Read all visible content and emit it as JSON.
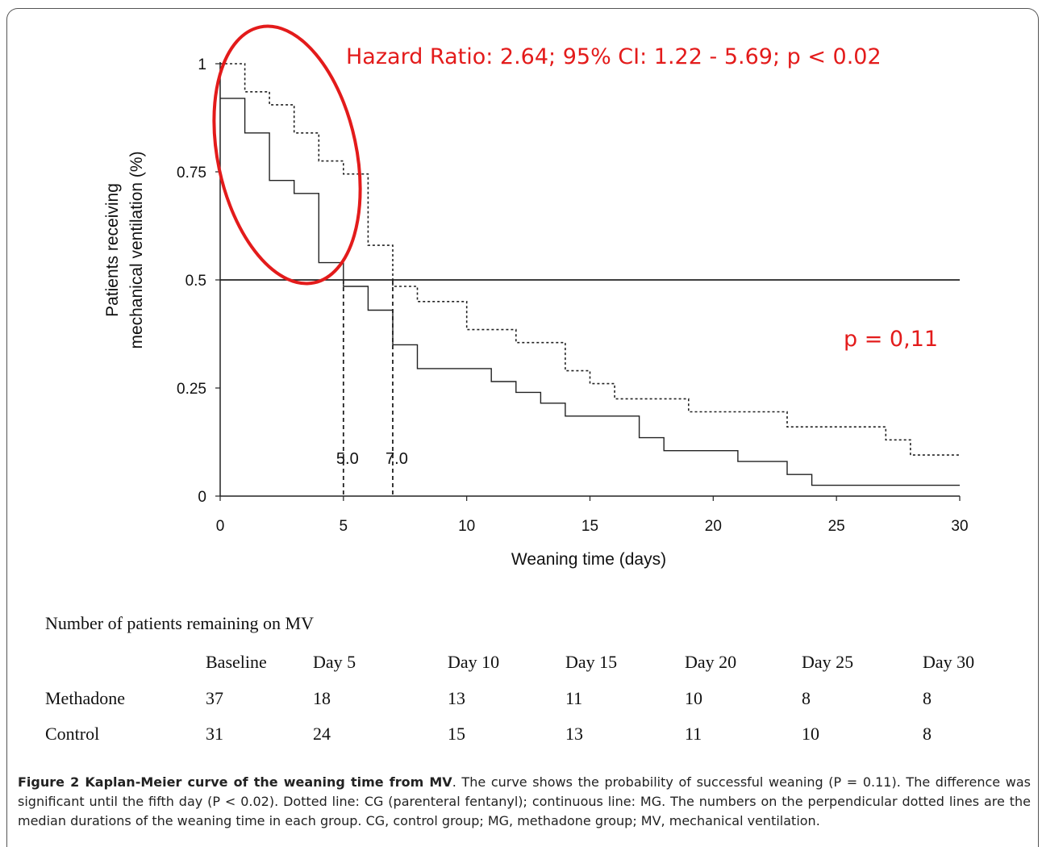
{
  "chart_data": {
    "type": "line",
    "xlabel": "Weaning time (days)",
    "ylabel_line1": "Patients receiving",
    "ylabel_line2": "mechanical ventilation  (%)",
    "xlim": [
      0,
      30
    ],
    "ylim": [
      0,
      1
    ],
    "x_ticks": [
      "0",
      "5",
      "10",
      "15",
      "20",
      "25",
      "30"
    ],
    "y_ticks": [
      "0",
      "0.25",
      "0.5",
      "0.75",
      "1"
    ],
    "series": [
      {
        "style": "dotted",
        "x": [
          0,
          1,
          1,
          2,
          2,
          3,
          3,
          4,
          4,
          5,
          5,
          6,
          6,
          7,
          7,
          8,
          8,
          10,
          10,
          12,
          12,
          14,
          14,
          15,
          15,
          16,
          16,
          19,
          19,
          23,
          23,
          27,
          27,
          28,
          28,
          30
        ],
        "y": [
          1.0,
          1.0,
          0.935,
          0.935,
          0.905,
          0.905,
          0.84,
          0.84,
          0.775,
          0.775,
          0.745,
          0.745,
          0.58,
          0.58,
          0.485,
          0.485,
          0.45,
          0.45,
          0.385,
          0.385,
          0.355,
          0.355,
          0.29,
          0.29,
          0.26,
          0.26,
          0.225,
          0.225,
          0.195,
          0.195,
          0.16,
          0.16,
          0.13,
          0.13,
          0.095,
          0.095
        ]
      },
      {
        "style": "solid",
        "x": [
          0,
          1,
          1,
          2,
          2,
          3,
          3,
          4,
          4,
          5,
          5,
          6,
          6,
          7,
          7,
          8,
          8,
          11,
          11,
          12,
          12,
          13,
          13,
          14,
          14,
          17,
          17,
          18,
          18,
          21,
          21,
          23,
          23,
          24,
          24,
          30
        ],
        "y": [
          0.92,
          0.92,
          0.84,
          0.84,
          0.73,
          0.73,
          0.7,
          0.7,
          0.54,
          0.54,
          0.485,
          0.485,
          0.43,
          0.43,
          0.35,
          0.35,
          0.295,
          0.295,
          0.265,
          0.265,
          0.24,
          0.24,
          0.215,
          0.215,
          0.185,
          0.185,
          0.135,
          0.135,
          0.105,
          0.105,
          0.08,
          0.08,
          0.05,
          0.05,
          0.025,
          0.025
        ]
      }
    ],
    "reference_line_y": 0.5,
    "medians": [
      {
        "x": 5,
        "label": "5.0"
      },
      {
        "x": 7,
        "label": "7.0"
      }
    ],
    "annotations": {
      "hazard_ratio": "Hazard Ratio: 2.64; 95% CI: 1.22 - 5.69; p < 0.02",
      "p_value": "p = 0,11"
    },
    "colors": {
      "annotation": "#e31b1b",
      "lines": "#222222"
    }
  },
  "risk_table": {
    "title": "Number of patients remaining on MV",
    "columns": [
      "Baseline",
      "Day 5",
      "Day 10",
      "Day 15",
      "Day 20",
      "Day 25",
      "Day 30"
    ],
    "rows": [
      {
        "label": "Methadone",
        "values": [
          "37",
          "18",
          "13",
          "11",
          "10",
          "8",
          "8"
        ]
      },
      {
        "label": "Control",
        "values": [
          "31",
          "24",
          "15",
          "13",
          "11",
          "10",
          "8"
        ]
      }
    ]
  },
  "caption": {
    "bold": "Figure 2 Kaplan-Meier curve of the weaning time from MV",
    "text": ". The curve shows the probability of successful weaning (P = 0.11). The difference was significant until the fifth day (P < 0.02). Dotted line: CG (parenteral fentanyl); continuous line: MG. The numbers on the perpendicular dotted lines are the median durations of the weaning time in each group. CG, control group; MG, methadone group; MV, mechanical ventilation."
  }
}
